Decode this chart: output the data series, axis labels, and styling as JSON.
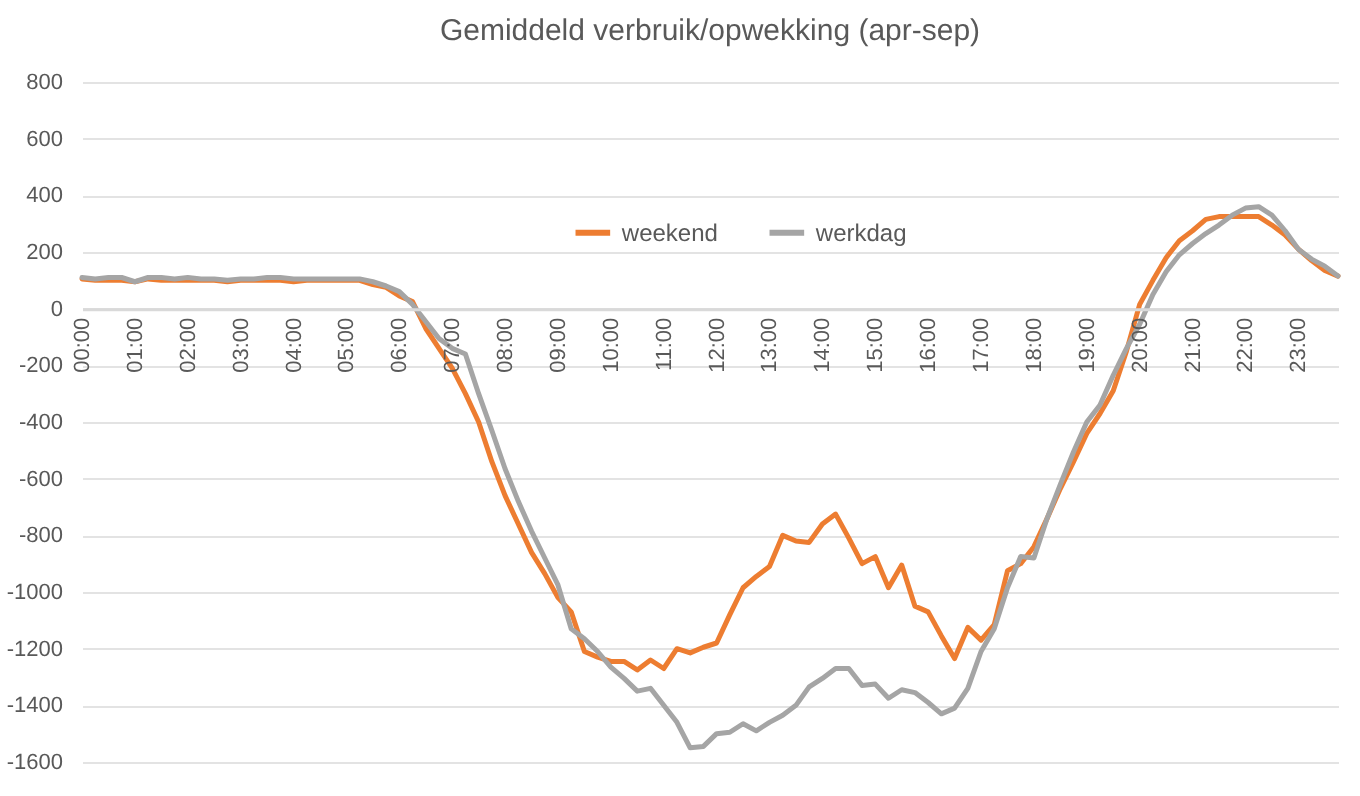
{
  "chart_data": {
    "type": "line",
    "title": "Gemiddeld verbruik/opwekking (apr-sep)",
    "x": [
      0,
      0.25,
      0.5,
      0.75,
      1,
      1.25,
      1.5,
      1.75,
      2,
      2.25,
      2.5,
      2.75,
      3,
      3.25,
      3.5,
      3.75,
      4,
      4.25,
      4.5,
      4.75,
      5,
      5.25,
      5.5,
      5.75,
      6,
      6.25,
      6.5,
      6.75,
      7,
      7.25,
      7.5,
      7.75,
      8,
      8.25,
      8.5,
      8.75,
      9,
      9.25,
      9.5,
      9.75,
      10,
      10.25,
      10.5,
      10.75,
      11,
      11.25,
      11.5,
      11.75,
      12,
      12.25,
      12.5,
      12.75,
      13,
      13.25,
      13.5,
      13.75,
      14,
      14.25,
      14.5,
      14.75,
      15,
      15.25,
      15.5,
      15.75,
      16,
      16.25,
      16.5,
      16.75,
      17,
      17.25,
      17.5,
      17.75,
      18,
      18.25,
      18.5,
      18.75,
      19,
      19.25,
      19.5,
      19.75,
      20,
      20.25,
      20.5,
      20.75,
      21,
      21.25,
      21.5,
      21.75,
      22,
      22.25,
      22.5,
      22.75,
      23,
      23.25,
      23.5,
      23.75
    ],
    "series": [
      {
        "name": "weekend",
        "color": "#ed7d31",
        "values": [
          105,
          100,
          100,
          100,
          95,
          105,
          100,
          100,
          100,
          100,
          100,
          95,
          100,
          100,
          100,
          100,
          95,
          100,
          100,
          100,
          100,
          100,
          85,
          75,
          45,
          25,
          -70,
          -140,
          -210,
          -300,
          -400,
          -540,
          -660,
          -760,
          -860,
          -935,
          -1020,
          -1070,
          -1210,
          -1230,
          -1245,
          -1245,
          -1275,
          -1240,
          -1270,
          -1200,
          -1215,
          -1195,
          -1180,
          -1080,
          -985,
          -945,
          -910,
          -800,
          -820,
          -825,
          -760,
          -725,
          -810,
          -900,
          -875,
          -985,
          -905,
          -1050,
          -1070,
          -1155,
          -1235,
          -1125,
          -1170,
          -1115,
          -925,
          -900,
          -840,
          -740,
          -635,
          -540,
          -440,
          -370,
          -290,
          -150,
          15,
          100,
          180,
          240,
          275,
          315,
          325,
          325,
          325,
          325,
          295,
          260,
          210,
          170,
          135,
          115
        ]
      },
      {
        "name": "werkdag",
        "color": "#a5a5a5",
        "values": [
          110,
          105,
          110,
          110,
          95,
          110,
          110,
          105,
          110,
          105,
          105,
          100,
          105,
          105,
          110,
          110,
          105,
          105,
          105,
          105,
          105,
          105,
          95,
          80,
          60,
          15,
          -45,
          -105,
          -140,
          -160,
          -300,
          -430,
          -565,
          -680,
          -785,
          -880,
          -975,
          -1130,
          -1165,
          -1210,
          -1265,
          -1305,
          -1350,
          -1340,
          -1400,
          -1460,
          -1550,
          -1545,
          -1500,
          -1495,
          -1465,
          -1490,
          -1460,
          -1435,
          -1400,
          -1335,
          -1305,
          -1270,
          -1270,
          -1330,
          -1325,
          -1375,
          -1345,
          -1355,
          -1390,
          -1430,
          -1410,
          -1340,
          -1210,
          -1130,
          -985,
          -875,
          -880,
          -740,
          -620,
          -505,
          -400,
          -340,
          -235,
          -140,
          -55,
          50,
          130,
          190,
          230,
          265,
          295,
          330,
          355,
          360,
          330,
          275,
          210,
          175,
          150,
          115
        ]
      }
    ],
    "xlim": [
      0,
      23.75
    ],
    "xticks": [
      {
        "value": 0,
        "label": "00:00"
      },
      {
        "value": 1,
        "label": "01:00"
      },
      {
        "value": 2,
        "label": "02:00"
      },
      {
        "value": 3,
        "label": "03:00"
      },
      {
        "value": 4,
        "label": "04:00"
      },
      {
        "value": 5,
        "label": "05:00"
      },
      {
        "value": 6,
        "label": "06:00"
      },
      {
        "value": 7,
        "label": "07:00"
      },
      {
        "value": 8,
        "label": "08:00"
      },
      {
        "value": 9,
        "label": "09:00"
      },
      {
        "value": 10,
        "label": "10:00"
      },
      {
        "value": 11,
        "label": "11:00"
      },
      {
        "value": 12,
        "label": "12:00"
      },
      {
        "value": 13,
        "label": "13:00"
      },
      {
        "value": 14,
        "label": "14:00"
      },
      {
        "value": 15,
        "label": "15:00"
      },
      {
        "value": 16,
        "label": "16:00"
      },
      {
        "value": 17,
        "label": "17:00"
      },
      {
        "value": 18,
        "label": "18:00"
      },
      {
        "value": 19,
        "label": "19:00"
      },
      {
        "value": 20,
        "label": "20:00"
      },
      {
        "value": 21,
        "label": "21:00"
      },
      {
        "value": 22,
        "label": "22:00"
      },
      {
        "value": 23,
        "label": "23:00"
      }
    ],
    "ylim": [
      -1600,
      800
    ],
    "yticks": [
      -1600,
      -1400,
      -1200,
      -1000,
      -800,
      -600,
      -400,
      -200,
      0,
      200,
      400,
      600,
      800
    ],
    "grid": "y",
    "legend": "top"
  }
}
